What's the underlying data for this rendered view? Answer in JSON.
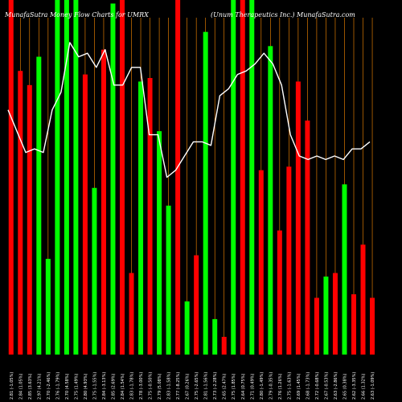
{
  "header": {
    "left": "MunafaSutra Money Flow Charts for UMRX",
    "right": "(Unum Therapeutics Inc.) MunafaSutra.com"
  },
  "colors": {
    "background": "#000000",
    "up": "#00ff00",
    "down": "#ff0000",
    "gridline": "#ff8c00",
    "line": "#ffffff"
  },
  "chart_data": {
    "type": "bar",
    "title": "MunafaSutra Money Flow Charts for UMRX",
    "subtitle": "(Unum Therapeutics Inc.) MunafaSutra.com",
    "bar_value_unit": "fraction of plot height (0-1, no printed axis)",
    "bars": [
      {
        "v": 1.0,
        "c": "down"
      },
      {
        "v": 0.8,
        "c": "down"
      },
      {
        "v": 0.76,
        "c": "down"
      },
      {
        "v": 0.84,
        "c": "up"
      },
      {
        "v": 0.27,
        "c": "up"
      },
      {
        "v": 1.0,
        "c": "up"
      },
      {
        "v": 1.0,
        "c": "up"
      },
      {
        "v": 1.0,
        "c": "up"
      },
      {
        "v": 0.79,
        "c": "down"
      },
      {
        "v": 0.47,
        "c": "up"
      },
      {
        "v": 0.86,
        "c": "down"
      },
      {
        "v": 0.99,
        "c": "up"
      },
      {
        "v": 1.0,
        "c": "down"
      },
      {
        "v": 0.23,
        "c": "down"
      },
      {
        "v": 0.77,
        "c": "up"
      },
      {
        "v": 0.78,
        "c": "down"
      },
      {
        "v": 0.63,
        "c": "up"
      },
      {
        "v": 0.42,
        "c": "up"
      },
      {
        "v": 1.0,
        "c": "down"
      },
      {
        "v": 0.15,
        "c": "up"
      },
      {
        "v": 0.28,
        "c": "down"
      },
      {
        "v": 0.91,
        "c": "up"
      },
      {
        "v": 0.1,
        "c": "up"
      },
      {
        "v": 0.05,
        "c": "down"
      },
      {
        "v": 1.0,
        "c": "up"
      },
      {
        "v": 1.0,
        "c": "down"
      },
      {
        "v": 1.0,
        "c": "up"
      },
      {
        "v": 0.52,
        "c": "down"
      },
      {
        "v": 0.87,
        "c": "up"
      },
      {
        "v": 0.35,
        "c": "down"
      },
      {
        "v": 0.53,
        "c": "down"
      },
      {
        "v": 0.77,
        "c": "down"
      },
      {
        "v": 0.66,
        "c": "down"
      },
      {
        "v": 0.16,
        "c": "down"
      },
      {
        "v": 0.22,
        "c": "up"
      },
      {
        "v": 0.23,
        "c": "down"
      },
      {
        "v": 0.48,
        "c": "up"
      },
      {
        "v": 0.17,
        "c": "down"
      },
      {
        "v": 0.31,
        "c": "down"
      },
      {
        "v": 0.16,
        "c": "down"
      }
    ],
    "line_unit": "fraction of plot height (0-1, no printed axis)",
    "line": [
      0.69,
      0.63,
      0.57,
      0.58,
      0.57,
      0.69,
      0.74,
      0.88,
      0.84,
      0.85,
      0.81,
      0.86,
      0.76,
      0.76,
      0.81,
      0.81,
      0.62,
      0.62,
      0.5,
      0.52,
      0.56,
      0.6,
      0.6,
      0.59,
      0.73,
      0.75,
      0.79,
      0.8,
      0.82,
      0.85,
      0.82,
      0.76,
      0.62,
      0.56,
      0.55,
      0.56,
      0.55,
      0.56,
      0.55,
      0.58,
      0.58,
      0.6
    ],
    "x_labels": [
      "2.81 (-1.05%)",
      "2.84 (1.05%)",
      "2.85 (3.63%)",
      "2.97 (4.21%)",
      "2.70 (-2.46%)",
      "2.76 (-1.79%)",
      "2.70 (4.58%)",
      "2.75 (1.49%)",
      "2.80 (4.93%)",
      "2.75 (-1.55%)",
      "2.84 (-3.13%)",
      "2.85 (2.69%)",
      "2.84 (1.54%)",
      "2.83 (-1.78%)",
      "2.78 (-3.00%)",
      "2.75 (-0.50%)",
      "2.79 (5.08%)",
      "2.83 (-1.58%)",
      "2.77 (-8.25%)",
      "2.67 (0.26%)",
      "2.75 (-2.65%)",
      "2.81 (-1.56%)",
      "2.73 (-2.28%)",
      "2.65 (2.47%)",
      "2.75 (1.85%)",
      "2.64 (0.75%)",
      "2.71 (0.49%)",
      "2.80 (-1.49%)",
      "2.79 (-0.35%)",
      "2.76 (1.26%)",
      "2.75 (-1.63%)",
      "2.69 (1.45%)",
      "2.68 (-1.73%)",
      "2.72 (-0.68%)",
      "2.67 (-0.53%)",
      "2.63 (-2.86%)",
      "2.65 (0.38%)",
      "2.62 (-3.35%)",
      "2.66 (1.32%)",
      "2.63 (-1.09%)"
    ]
  }
}
